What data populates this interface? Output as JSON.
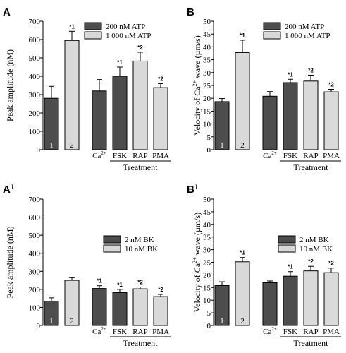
{
  "panels": [
    {
      "label": "A",
      "ylabel": "Peak amplitude (nM)",
      "ylim": [
        0,
        700
      ],
      "yticks": [
        0,
        100,
        200,
        300,
        400,
        500,
        600,
        700
      ],
      "legend": [
        "200 nM ATP",
        "1 000 nM ATP"
      ]
    },
    {
      "label": "B",
      "ylabel_main": "Velocity of Ca",
      "ylabel_sup": "2+",
      "ylabel_tail": " wave (µm/s)",
      "ylim": [
        0,
        50
      ],
      "yticks": [
        0,
        5,
        10,
        15,
        20,
        25,
        30,
        35,
        40,
        45,
        50
      ],
      "legend": [
        "200 nM ATP",
        "1 000 nM ATP"
      ]
    },
    {
      "label": "A",
      "label_mark": "I",
      "ylabel": "Peak amplitude (nM)",
      "ylim": [
        0,
        700
      ],
      "yticks": [
        0,
        100,
        200,
        300,
        400,
        500,
        600,
        700
      ],
      "legend": [
        "2 nM BK",
        "10 nM BK"
      ]
    },
    {
      "label": "B",
      "label_mark": "I",
      "ylabel_main": "Velocity of Ca",
      "ylabel_sup": "2+",
      "ylabel_tail": " wave (µm/s)",
      "ylim": [
        0,
        50
      ],
      "yticks": [
        0,
        5,
        10,
        15,
        20,
        25,
        30,
        35,
        40,
        45,
        50
      ],
      "legend": [
        "2 nM BK",
        "10 nM BK"
      ]
    }
  ],
  "category_labels": {
    "bar1": "1",
    "bar2": "2",
    "ca_main": "Ca",
    "ca_sup": "2+",
    "fsk": "FSK",
    "rap": "RAP",
    "pma": "PMA",
    "treatment": "Treatment"
  },
  "chart_data": [
    {
      "type": "bar",
      "panel": "A",
      "ylabel": "Peak amplitude (nM)",
      "ylim": [
        0,
        700
      ],
      "categories": [
        "1",
        "2",
        "Ca2+",
        "FSK",
        "RAP",
        "PMA"
      ],
      "values": [
        280,
        595,
        320,
        400,
        483,
        338
      ],
      "errors": [
        65,
        50,
        62,
        50,
        48,
        22
      ],
      "fill": [
        "dark",
        "light",
        "dark",
        "dark",
        "light",
        "light"
      ],
      "annotations": [
        "",
        "*1",
        "",
        "*1",
        "*2",
        "*2"
      ],
      "legend": [
        "200 nM ATP",
        "1 000 nM ATP"
      ],
      "grid": false,
      "legend_position": "top-right"
    },
    {
      "type": "bar",
      "panel": "B",
      "ylabel": "Velocity of Ca2+ wave (µm/s)",
      "ylim": [
        0,
        50
      ],
      "categories": [
        "1",
        "2",
        "Ca2+",
        "FSK",
        "RAP",
        "PMA"
      ],
      "values": [
        18.7,
        37.8,
        20.8,
        26.1,
        26.7,
        22.5
      ],
      "errors": [
        1.2,
        4.8,
        1.8,
        1.3,
        2.3,
        1.0
      ],
      "fill": [
        "dark",
        "light",
        "dark",
        "dark",
        "light",
        "light"
      ],
      "annotations": [
        "",
        "*1",
        "",
        "*1",
        "*2",
        "*2"
      ],
      "legend": [
        "200 nM ATP",
        "1 000 nM ATP"
      ],
      "grid": false,
      "legend_position": "top-right"
    },
    {
      "type": "bar",
      "panel": "A'",
      "ylabel": "Peak amplitude (nM)",
      "ylim": [
        0,
        700
      ],
      "categories": [
        "1",
        "2",
        "Ca2+",
        "FSK",
        "RAP",
        "PMA"
      ],
      "values": [
        135,
        250,
        205,
        182,
        203,
        160
      ],
      "errors": [
        18,
        15,
        15,
        18,
        10,
        12
      ],
      "fill": [
        "dark",
        "light",
        "dark",
        "dark",
        "light",
        "light"
      ],
      "annotations": [
        "",
        "",
        "*1",
        "*1",
        "*2",
        "*2"
      ],
      "legend": [
        "2 nM BK",
        "10 nM BK"
      ],
      "grid": false,
      "legend_position": "center-right"
    },
    {
      "type": "bar",
      "panel": "B'",
      "ylabel": "Velocity of Ca2+ wave (µm/s)",
      "ylim": [
        0,
        50
      ],
      "categories": [
        "1",
        "2",
        "Ca2+",
        "FSK",
        "RAP",
        "PMA"
      ],
      "values": [
        15.8,
        25.2,
        16.9,
        19.5,
        21.6,
        20.9
      ],
      "errors": [
        1.5,
        1.7,
        0.7,
        1.8,
        1.8,
        1.8
      ],
      "fill": [
        "dark",
        "light",
        "dark",
        "dark",
        "light",
        "light"
      ],
      "annotations": [
        "",
        "*1",
        "",
        "*1",
        "*2",
        "*2"
      ],
      "legend": [
        "2 nM BK",
        "10 nM BK"
      ],
      "grid": false,
      "legend_position": "center-right"
    }
  ],
  "colors": {
    "dark": "#4d4d4d",
    "light": "#d9d9d9",
    "stroke": "#000000",
    "bar_number": "#ffffff"
  }
}
